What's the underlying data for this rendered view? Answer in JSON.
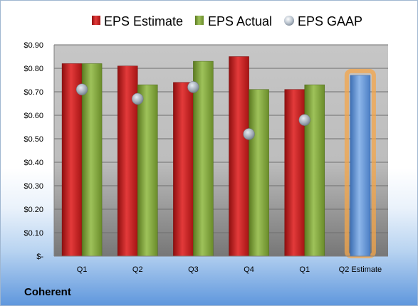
{
  "company": "Coherent",
  "colors": {
    "estimate": "#cc2222",
    "actual": "#86a83a",
    "gaap": "#a7b4c4",
    "q2_estimate": "#6b9bd6",
    "highlight": "#f4a64a"
  },
  "chart_data": {
    "type": "bar",
    "categories": [
      "Q1",
      "Q2",
      "Q3",
      "Q4",
      "Q1",
      "Q2 Estimate"
    ],
    "series": [
      {
        "name": "EPS Estimate",
        "values": [
          0.82,
          0.81,
          0.74,
          0.85,
          0.71,
          null
        ]
      },
      {
        "name": "EPS Actual",
        "values": [
          0.82,
          0.73,
          0.83,
          0.71,
          0.73,
          null
        ]
      },
      {
        "name": "EPS GAAP",
        "values": [
          0.71,
          0.67,
          0.72,
          0.52,
          0.58,
          null
        ]
      }
    ],
    "q2_estimate_value": 0.77,
    "y_ticks": [
      "$-",
      "$0.10",
      "$0.20",
      "$0.30",
      "$0.40",
      "$0.50",
      "$0.60",
      "$0.70",
      "$0.80",
      "$0.90"
    ],
    "ylim": [
      0,
      0.9
    ],
    "grid": true,
    "legend_position": "top"
  }
}
